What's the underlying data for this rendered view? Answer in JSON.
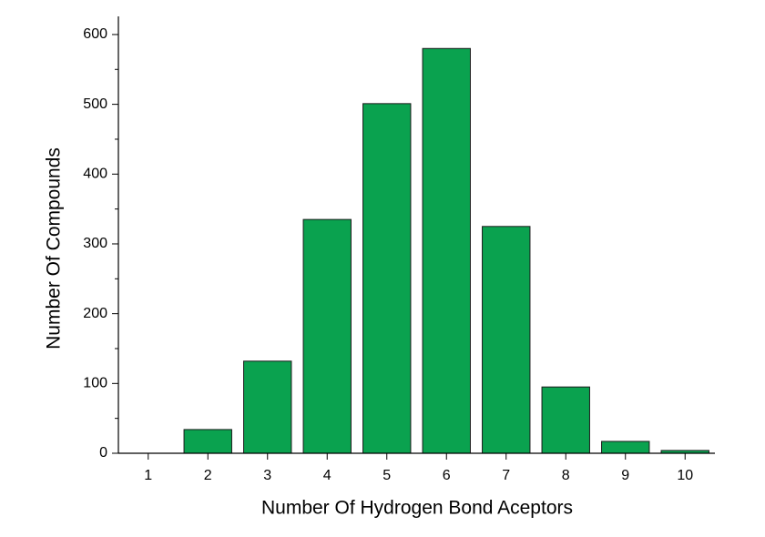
{
  "chart_data": {
    "type": "bar",
    "x_label": "Number Of Hydrogen Bond Aceptors",
    "y_label": "Number Of Compounds",
    "categories": [
      "1",
      "2",
      "3",
      "4",
      "5",
      "6",
      "7",
      "8",
      "9",
      "10"
    ],
    "values": [
      0,
      34,
      132,
      335,
      501,
      580,
      325,
      95,
      17,
      4
    ],
    "color": "#0aa24f",
    "ylim": [
      0,
      626
    ],
    "yticks": [
      0,
      100,
      200,
      300,
      400,
      500,
      600
    ],
    "y_minor_ticks": [
      50,
      150,
      250,
      350,
      450,
      550
    ],
    "grid": false
  }
}
